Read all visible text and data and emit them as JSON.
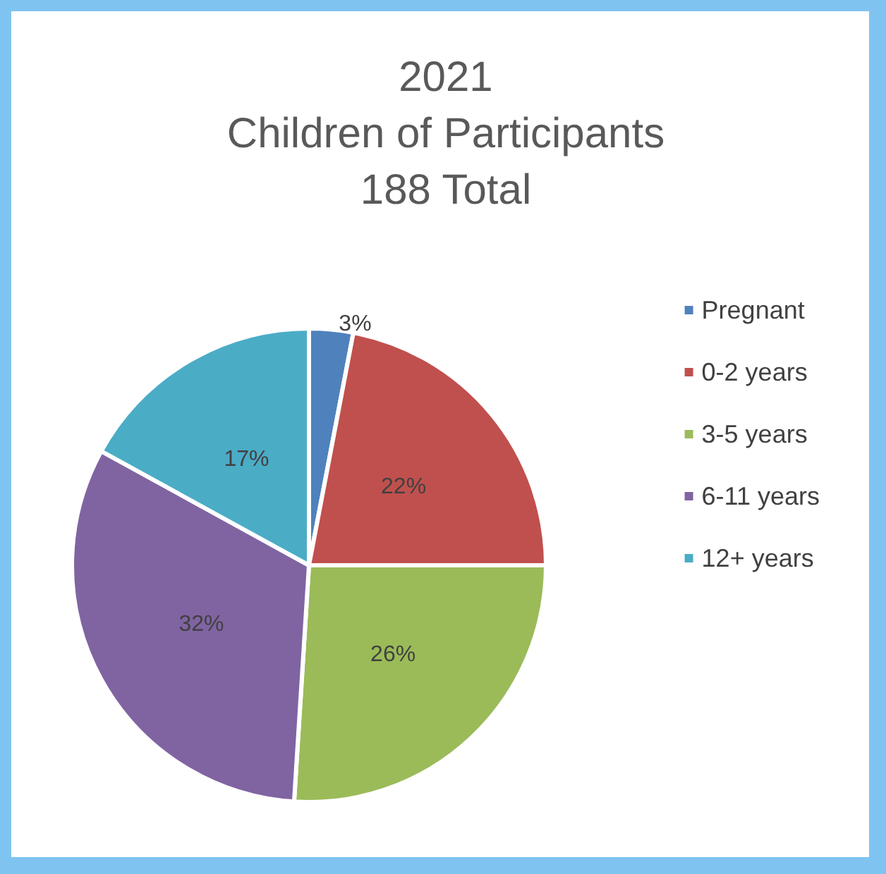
{
  "chart_data": {
    "type": "pie",
    "title": "2021\nChildren of Participants\n188 Total",
    "categories": [
      "Pregnant",
      "0-2 years",
      "3-5 years",
      "6-11 years",
      "12+ years"
    ],
    "values": [
      3,
      22,
      26,
      32,
      17
    ],
    "colors": [
      "#4f81bd",
      "#c0504d",
      "#9bbb59",
      "#8064a2",
      "#4bacc6"
    ],
    "value_labels": [
      "3%",
      "22%",
      "26%",
      "32%",
      "17%"
    ],
    "legend": "right"
  }
}
